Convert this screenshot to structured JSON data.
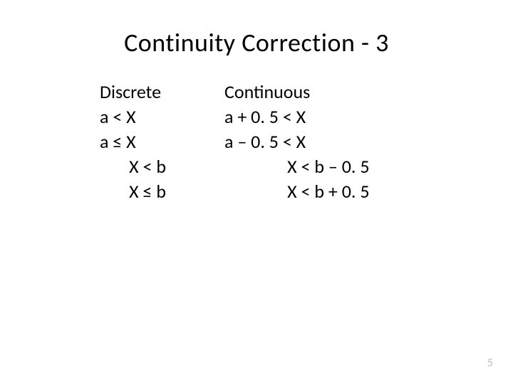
{
  "title": "Continuity Correction - 3",
  "headers": {
    "left": "Discrete",
    "right": "Continuous"
  },
  "rows": [
    {
      "left": "a < X",
      "right": "a + 0. 5 < X"
    },
    {
      "left": "a ≤ X",
      "right": "a – 0. 5 < X"
    },
    {
      "left": "       X < b",
      "right": "               X < b – 0. 5"
    },
    {
      "left": "       X ≤ b",
      "right": "               X < b + 0. 5"
    }
  ],
  "page_number": "5",
  "styles": {
    "title_fontsize": 36,
    "body_fontsize": 26,
    "background_color": "#ffffff",
    "text_color": "#000000",
    "page_number_color": "#bfbfbf"
  }
}
